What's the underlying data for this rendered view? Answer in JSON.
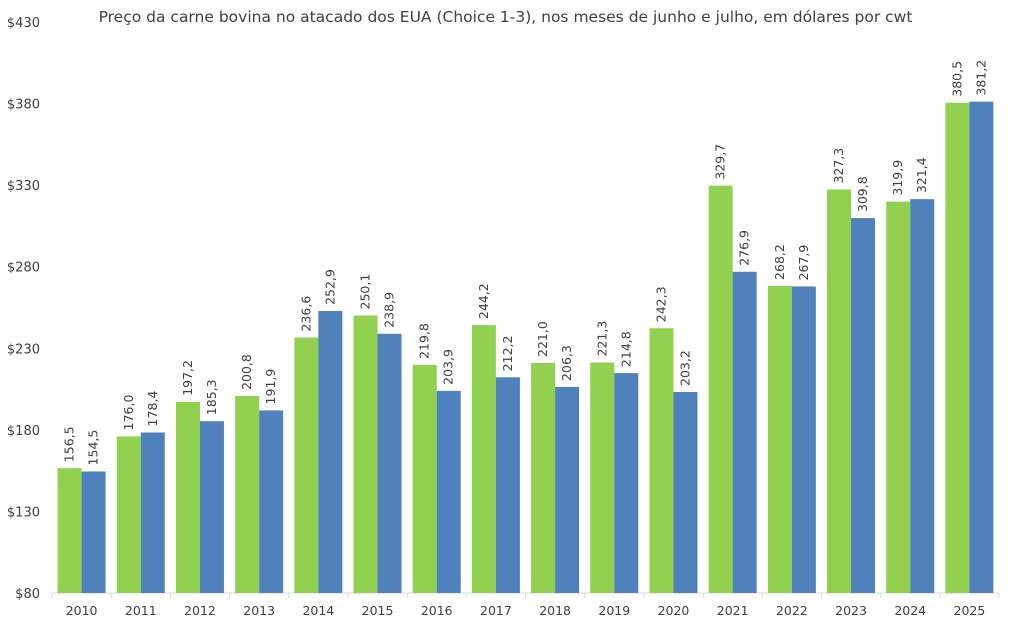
{
  "chart_data": {
    "type": "bar",
    "title": "Preço da carne bovina no atacado dos EUA (Choice 1-3), nos meses de junho e julho, em dólares por cwt",
    "xlabel": "",
    "ylabel": "",
    "ylim": [
      80,
      430
    ],
    "yticks": [
      80,
      130,
      180,
      230,
      280,
      330,
      380,
      430
    ],
    "ytick_labels": [
      "$80",
      "$130",
      "$180",
      "$230",
      "$280",
      "$330",
      "$380",
      "$430"
    ],
    "grid": false,
    "legend": "none",
    "categories": [
      "2010",
      "2011",
      "2012",
      "2013",
      "2014",
      "2015",
      "2016",
      "2017",
      "2018",
      "2019",
      "2020",
      "2021",
      "2022",
      "2023",
      "2024",
      "2025"
    ],
    "series": [
      {
        "color": "#92D050",
        "values": [
          156.5,
          176.0,
          197.2,
          200.8,
          236.6,
          250.1,
          219.8,
          244.2,
          221.0,
          221.3,
          242.3,
          329.7,
          268.2,
          327.3,
          319.9,
          380.5
        ],
        "labels": [
          "156,5",
          "176,0",
          "197,2",
          "200,8",
          "236,6",
          "250,1",
          "219,8",
          "244,2",
          "221,0",
          "221,3",
          "242,3",
          "329,7",
          "268,2",
          "327,3",
          "319,9",
          "380,5"
        ]
      },
      {
        "color": "#4F81BD",
        "values": [
          154.5,
          178.4,
          185.3,
          191.9,
          252.9,
          238.9,
          203.9,
          212.2,
          206.3,
          214.8,
          203.2,
          276.9,
          267.9,
          309.8,
          321.4,
          381.2
        ],
        "labels": [
          "154,5",
          "178,4",
          "185,3",
          "191,9",
          "252,9",
          "238,9",
          "203,9",
          "212,2",
          "206,3",
          "214,8",
          "203,2",
          "276,9",
          "267,9",
          "309,8",
          "321,4",
          "381,2"
        ]
      }
    ]
  }
}
